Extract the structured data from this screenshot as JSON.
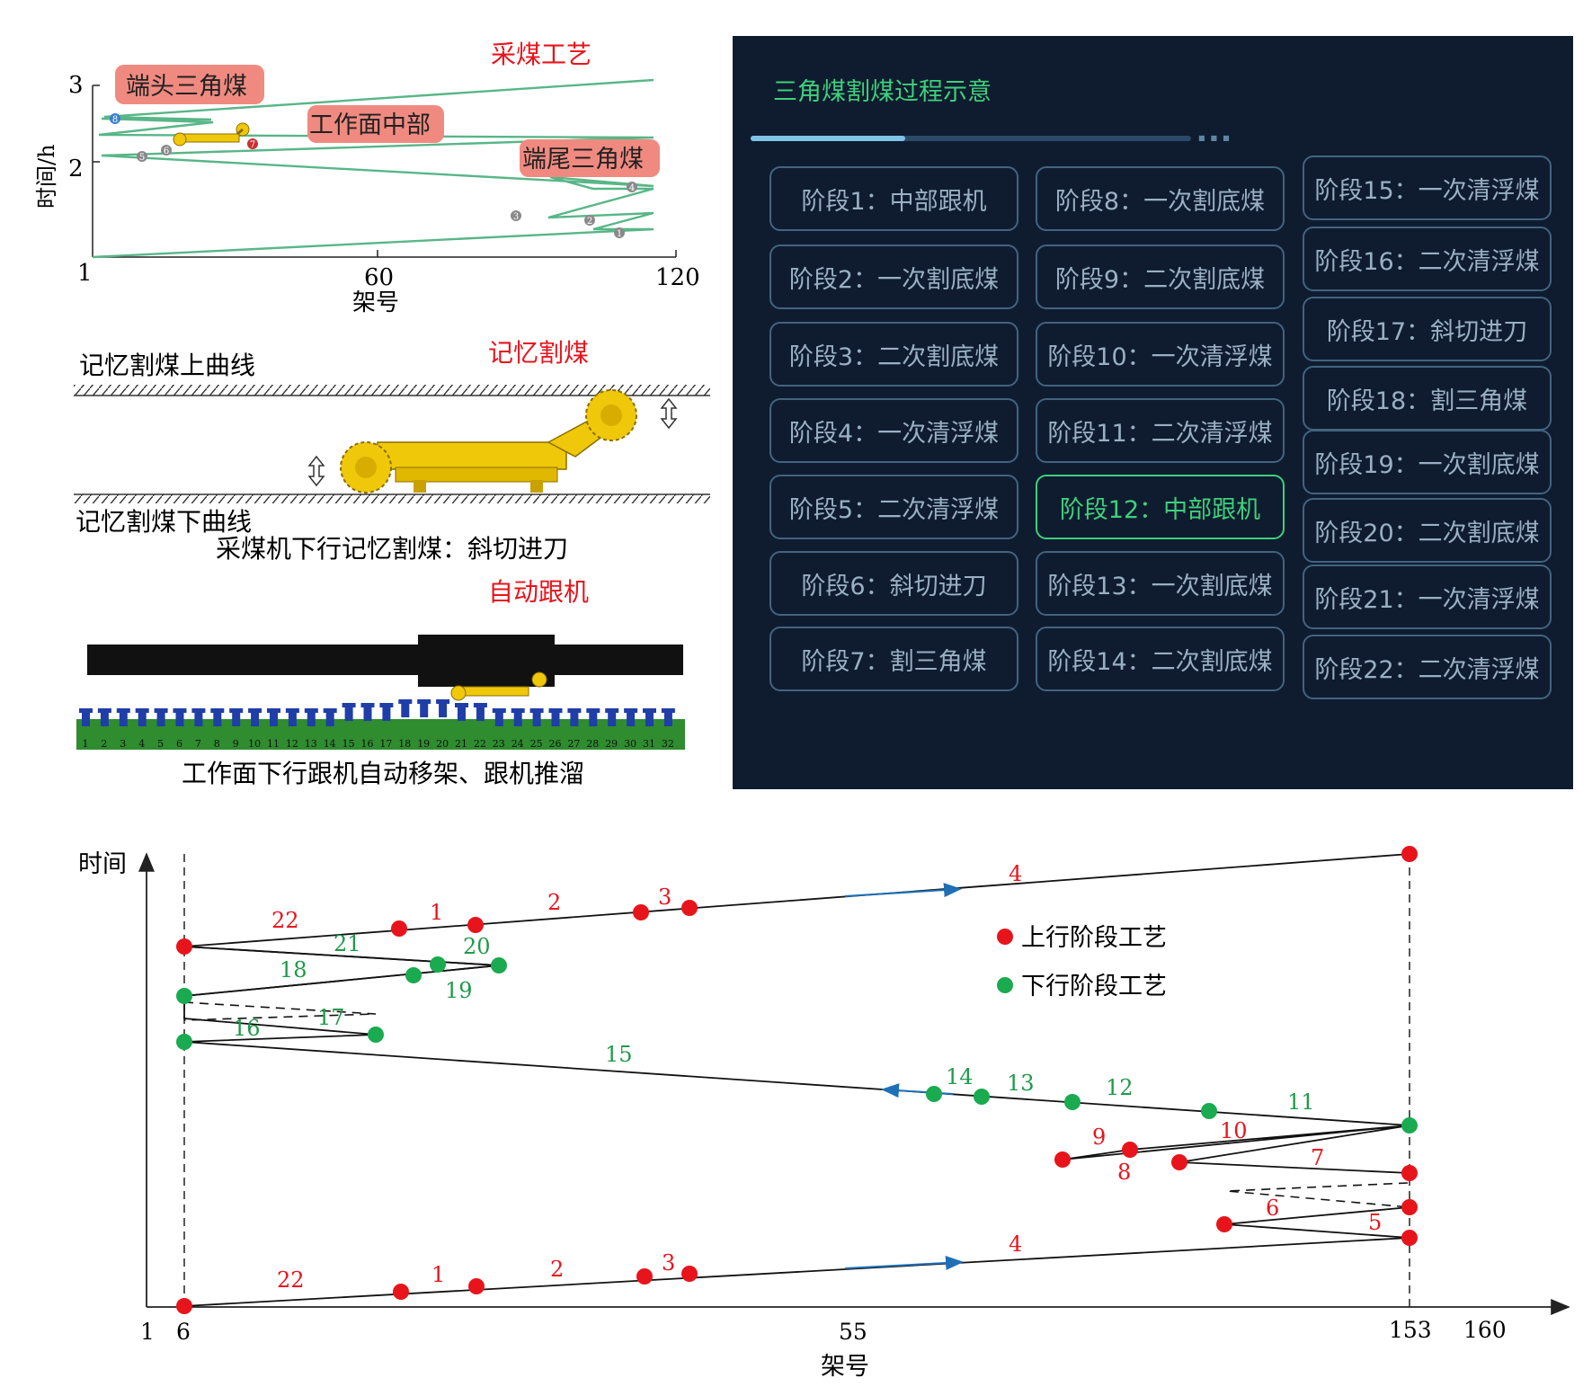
{
  "top_chart": {
    "ylabel": "时间/h",
    "xlabel": "架号",
    "yticks": [
      "3",
      "2"
    ],
    "xticks": [
      "1",
      "60",
      "120"
    ],
    "title": "采煤工艺",
    "tags": {
      "head": "端头三角煤",
      "mid": "工作面中部",
      "tail": "端尾三角煤"
    },
    "markers": [
      "1",
      "2",
      "3",
      "4",
      "5",
      "6",
      "7",
      "8"
    ]
  },
  "memory_cut": {
    "title": "记忆割煤",
    "upper": "记忆割煤上曲线",
    "lower": "记忆割煤下曲线",
    "caption": "采煤机下行记忆割煤：斜切进刀"
  },
  "auto_follow": {
    "title": "自动跟机",
    "caption": "工作面下行跟机自动移架、跟机推溜",
    "support_numbers": [
      "1",
      "2",
      "3",
      "4",
      "5",
      "6",
      "7",
      "8",
      "9",
      "10",
      "11",
      "12",
      "13",
      "14",
      "15",
      "16",
      "17",
      "18",
      "19",
      "20",
      "21",
      "22",
      "23",
      "24",
      "25",
      "26",
      "27",
      "28",
      "29",
      "30",
      "31",
      "32"
    ]
  },
  "stage_panel": {
    "title": "三角煤割煤过程示意",
    "progress": 0.35,
    "active": "阶段12：中部跟机",
    "columns": [
      [
        "阶段1：中部跟机",
        "阶段2：一次割底煤",
        "阶段3：二次割底煤",
        "阶段4：一次清浮煤",
        "阶段5：二次清浮煤",
        "阶段6：斜切进刀",
        "阶段7：割三角煤"
      ],
      [
        "阶段8：一次割底煤",
        "阶段9：二次割底煤",
        "阶段10：一次清浮煤",
        "阶段11：二次清浮煤",
        "阶段12：中部跟机",
        "阶段13：一次割底煤",
        "阶段14：二次割底煤"
      ],
      [
        "阶段15：一次清浮煤",
        "阶段16：二次清浮煤",
        "阶段17：斜切进刀",
        "阶段18：割三角煤",
        "阶段19：一次割底煤",
        "阶段20：二次割底煤",
        "阶段21：一次清浮煤",
        "阶段22：二次清浮煤"
      ]
    ]
  },
  "bottom_chart": {
    "ylabel": "时间",
    "xlabel": "架号",
    "xticks": [
      "1",
      "6",
      "55",
      "153",
      "160"
    ],
    "legend": {
      "up": "上行阶段工艺",
      "down": "下行阶段工艺"
    },
    "colors": {
      "up": "#e8141c",
      "down": "#1aaa50",
      "stage_up": "#e8141c",
      "stage_down": "#1f9a4a",
      "arrow": "#1f6fb5"
    },
    "segment_labels_lower": [
      "22",
      "1",
      "2",
      "3",
      "4",
      "5",
      "6",
      "7",
      "8",
      "9",
      "10",
      "11"
    ],
    "segment_labels_upper": [
      "12",
      "13",
      "14",
      "15",
      "16",
      "17",
      "18",
      "19",
      "20",
      "21",
      "22",
      "1",
      "2",
      "3",
      "4"
    ]
  }
}
